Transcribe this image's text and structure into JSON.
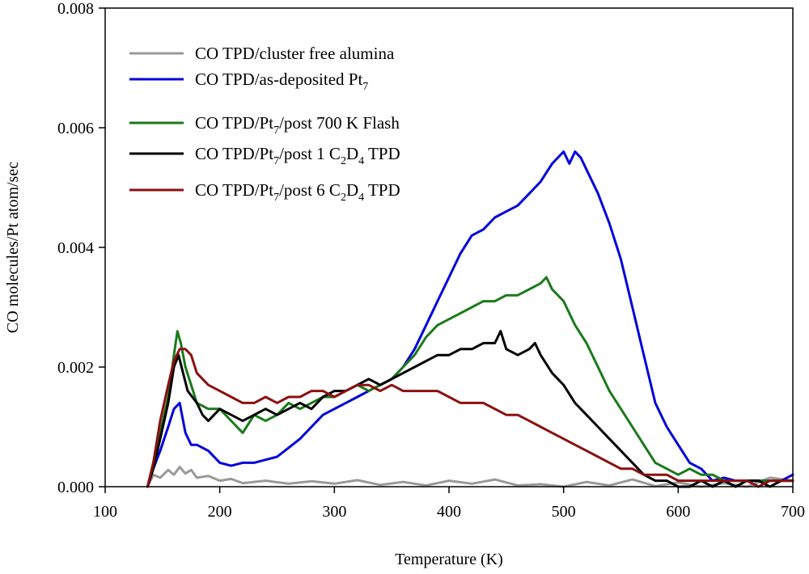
{
  "chart_data": {
    "type": "line",
    "title": "",
    "xlabel": "Temperature (K)",
    "ylabel": "CO molecules/Pt atom/sec",
    "xlim": [
      100,
      700
    ],
    "ylim": [
      0,
      0.008
    ],
    "xticks": [
      "100",
      "200",
      "300",
      "400",
      "500",
      "600",
      "700"
    ],
    "yticks": [
      "0.000",
      "0.002",
      "0.004",
      "0.006",
      "0.008"
    ],
    "grid": false,
    "legend_position": "top-left",
    "series": [
      {
        "name": "CO TPD/cluster free alumina",
        "legend": {
          "pre": "CO TPD/cluster free alumina",
          "subs": []
        },
        "color": "#999999",
        "x": [
          137,
          142,
          148,
          155,
          160,
          165,
          170,
          175,
          180,
          190,
          200,
          210,
          220,
          240,
          260,
          280,
          300,
          320,
          340,
          360,
          380,
          400,
          420,
          440,
          460,
          480,
          500,
          520,
          540,
          560,
          580,
          600,
          620,
          640,
          660,
          680,
          700
        ],
        "y": [
          0.0,
          0.0002,
          0.00015,
          0.00028,
          0.0002,
          0.00033,
          0.00022,
          0.00028,
          0.00015,
          0.00018,
          0.0001,
          0.00013,
          6e-05,
          0.0001,
          5e-05,
          9e-05,
          5e-05,
          0.00011,
          3e-05,
          8e-05,
          2e-05,
          0.0001,
          5e-05,
          0.00012,
          2e-05,
          4e-05,
          0.0,
          8e-05,
          2e-05,
          0.00012,
          1e-05,
          7e-05,
          0.0,
          6e-05,
          0.0,
          0.00015,
          0.0001
        ]
      },
      {
        "name": "CO TPD/as-deposited Pt7",
        "legend": {
          "pre": "CO TPD/as-deposited Pt",
          "subs": [
            [
              "7",
              ""
            ]
          ]
        },
        "color": "#0000dd",
        "x": [
          137,
          142,
          148,
          155,
          160,
          165,
          170,
          175,
          180,
          190,
          200,
          210,
          220,
          230,
          240,
          250,
          260,
          270,
          280,
          290,
          300,
          310,
          320,
          330,
          340,
          350,
          360,
          370,
          380,
          390,
          400,
          410,
          420,
          430,
          440,
          450,
          460,
          470,
          480,
          490,
          495,
          500,
          505,
          510,
          515,
          520,
          530,
          540,
          550,
          560,
          570,
          580,
          590,
          600,
          610,
          620,
          630,
          640,
          650,
          660,
          670,
          680,
          690,
          700
        ],
        "y": [
          0.0,
          0.0003,
          0.0006,
          0.001,
          0.0013,
          0.0014,
          0.0009,
          0.0007,
          0.0007,
          0.0006,
          0.0004,
          0.00035,
          0.0004,
          0.0004,
          0.00045,
          0.0005,
          0.00065,
          0.0008,
          0.001,
          0.0012,
          0.0013,
          0.0014,
          0.0015,
          0.0016,
          0.0017,
          0.0018,
          0.002,
          0.0023,
          0.0027,
          0.0031,
          0.0035,
          0.0039,
          0.0042,
          0.0043,
          0.0045,
          0.0046,
          0.0047,
          0.0049,
          0.0051,
          0.0054,
          0.0055,
          0.0056,
          0.0054,
          0.0056,
          0.0055,
          0.0053,
          0.0049,
          0.0044,
          0.0038,
          0.003,
          0.0022,
          0.0014,
          0.001,
          0.0007,
          0.0004,
          0.0003,
          0.0001,
          0.00015,
          0.0001,
          0.0001,
          0.0001,
          0.0001,
          0.0001,
          0.0002
        ]
      },
      {
        "name": "CO TPD/Pt7/post 700 K Flash",
        "legend": {
          "pre": "CO TPD/Pt",
          "subs": [
            [
              "7",
              "/post 700 K Flash"
            ]
          ]
        },
        "color": "#1a7a1a",
        "x": [
          137,
          142,
          148,
          155,
          160,
          163,
          166,
          170,
          175,
          180,
          190,
          200,
          210,
          220,
          230,
          240,
          250,
          260,
          270,
          280,
          290,
          300,
          310,
          320,
          330,
          340,
          350,
          360,
          370,
          380,
          390,
          400,
          410,
          420,
          430,
          440,
          450,
          460,
          470,
          480,
          485,
          490,
          500,
          510,
          520,
          530,
          540,
          550,
          560,
          570,
          580,
          590,
          600,
          610,
          620,
          630,
          640,
          650,
          660,
          670,
          680,
          690,
          700
        ],
        "y": [
          0.0,
          0.0004,
          0.0009,
          0.0015,
          0.0022,
          0.0026,
          0.0024,
          0.002,
          0.0017,
          0.0014,
          0.0013,
          0.0013,
          0.0011,
          0.0009,
          0.0012,
          0.0011,
          0.0012,
          0.0014,
          0.0013,
          0.0014,
          0.0015,
          0.0015,
          0.0016,
          0.0017,
          0.0016,
          0.0017,
          0.0018,
          0.002,
          0.0022,
          0.0025,
          0.0027,
          0.0028,
          0.0029,
          0.003,
          0.0031,
          0.0031,
          0.0032,
          0.0032,
          0.0033,
          0.0034,
          0.0035,
          0.0033,
          0.0031,
          0.0027,
          0.0024,
          0.002,
          0.0016,
          0.0013,
          0.001,
          0.0007,
          0.0004,
          0.0003,
          0.0002,
          0.0003,
          0.0002,
          0.0002,
          0.0001,
          0.0001,
          0.0001,
          0.0001,
          0.0001,
          0.0001,
          0.0001
        ]
      },
      {
        "name": "CO TPD/Pt7/post 1 C2D4 TPD",
        "legend": {
          "pre": "CO TPD/Pt",
          "subs": [
            [
              "7",
              "/post 1 C"
            ],
            [
              "2",
              "D"
            ],
            [
              "4",
              " TPD"
            ]
          ]
        },
        "color": "#000000",
        "x": [
          137,
          142,
          148,
          155,
          160,
          164,
          168,
          172,
          176,
          180,
          185,
          190,
          200,
          210,
          220,
          230,
          240,
          250,
          260,
          270,
          280,
          290,
          300,
          310,
          320,
          330,
          340,
          350,
          360,
          370,
          380,
          390,
          400,
          410,
          420,
          430,
          440,
          445,
          450,
          460,
          470,
          475,
          480,
          490,
          500,
          510,
          520,
          530,
          540,
          550,
          560,
          570,
          580,
          590,
          600,
          610,
          620,
          630,
          640,
          650,
          660,
          670,
          680,
          690,
          700
        ],
        "y": [
          0.0,
          0.0003,
          0.0008,
          0.0014,
          0.002,
          0.0022,
          0.0019,
          0.0016,
          0.0015,
          0.0014,
          0.0012,
          0.0011,
          0.0013,
          0.0012,
          0.0011,
          0.0012,
          0.0013,
          0.0012,
          0.0013,
          0.0014,
          0.0013,
          0.0015,
          0.0016,
          0.0016,
          0.0017,
          0.0018,
          0.0017,
          0.0018,
          0.0019,
          0.002,
          0.0021,
          0.0022,
          0.0022,
          0.0023,
          0.0023,
          0.0024,
          0.0024,
          0.0026,
          0.0023,
          0.0022,
          0.0023,
          0.0024,
          0.0022,
          0.0019,
          0.0017,
          0.0014,
          0.0012,
          0.001,
          0.0008,
          0.0006,
          0.0004,
          0.0002,
          0.0001,
          0.0001,
          0.0,
          0.0,
          0.0001,
          0.0,
          0.0001,
          0.0,
          0.0001,
          0.0001,
          0.0,
          0.0001,
          0.0001
        ]
      },
      {
        "name": "CO TPD/Pt7/post 6 C2D4 TPD",
        "legend": {
          "pre": "CO TPD/Pt",
          "subs": [
            [
              "7",
              "/post 6 C"
            ],
            [
              "2",
              "D"
            ],
            [
              "4",
              " TPD"
            ]
          ]
        },
        "color": "#8b1010",
        "x": [
          137,
          142,
          148,
          155,
          160,
          165,
          170,
          175,
          180,
          190,
          200,
          210,
          220,
          230,
          240,
          250,
          260,
          270,
          280,
          290,
          300,
          310,
          320,
          330,
          340,
          350,
          360,
          370,
          380,
          390,
          400,
          410,
          420,
          430,
          440,
          450,
          460,
          470,
          480,
          490,
          500,
          510,
          520,
          530,
          540,
          550,
          560,
          570,
          580,
          590,
          600,
          610,
          620,
          630,
          640,
          650,
          660,
          670,
          680,
          690,
          700
        ],
        "y": [
          0.0,
          0.0004,
          0.0011,
          0.0017,
          0.0021,
          0.0023,
          0.0023,
          0.0022,
          0.0019,
          0.0017,
          0.0016,
          0.0015,
          0.0014,
          0.0014,
          0.0015,
          0.0014,
          0.0015,
          0.0015,
          0.0016,
          0.0016,
          0.0015,
          0.0016,
          0.0017,
          0.0017,
          0.0016,
          0.0017,
          0.0016,
          0.0016,
          0.0016,
          0.0016,
          0.0015,
          0.0014,
          0.0014,
          0.0014,
          0.0013,
          0.0012,
          0.0012,
          0.0011,
          0.001,
          0.0009,
          0.0008,
          0.0007,
          0.0006,
          0.0005,
          0.0004,
          0.0003,
          0.0003,
          0.0002,
          0.0002,
          0.0002,
          0.0001,
          0.0001,
          0.0001,
          0.0001,
          0.0001,
          0.0001,
          0.0001,
          0.0,
          0.0001,
          0.0001,
          0.0001
        ]
      }
    ]
  }
}
